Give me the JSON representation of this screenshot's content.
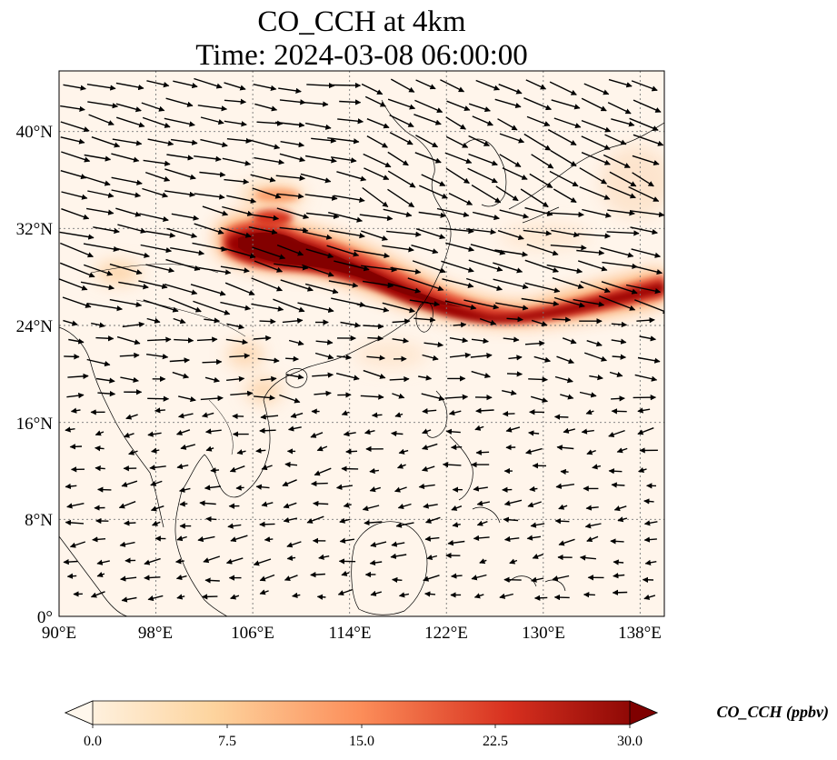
{
  "title": {
    "line1": "CO_CCH at 4km",
    "line2": "Time: 2024-03-08 06:00:00"
  },
  "axes": {
    "x_ticks": [
      "90°E",
      "98°E",
      "106°E",
      "114°E",
      "122°E",
      "130°E",
      "138°E"
    ],
    "y_ticks": [
      "40°N",
      "32°N",
      "24°N",
      "16°N",
      "8°N",
      "0°"
    ],
    "lon_range": [
      90,
      140
    ],
    "lat_range": [
      0,
      45
    ],
    "gridlines": true
  },
  "colorbar": {
    "label": "CO_CCH (ppbv)",
    "ticks": [
      "0.0",
      "7.5",
      "15.0",
      "22.5",
      "30.0"
    ],
    "range": [
      0,
      30
    ],
    "colormap": "OrRd",
    "extend": "both"
  },
  "colors": {
    "background": "#fff5eb",
    "plume_dark": "#7f0000",
    "plume_mid": "#d7301f",
    "plume_light": "#fdbb84",
    "coastline": "#000000",
    "grid": "#777777"
  }
}
